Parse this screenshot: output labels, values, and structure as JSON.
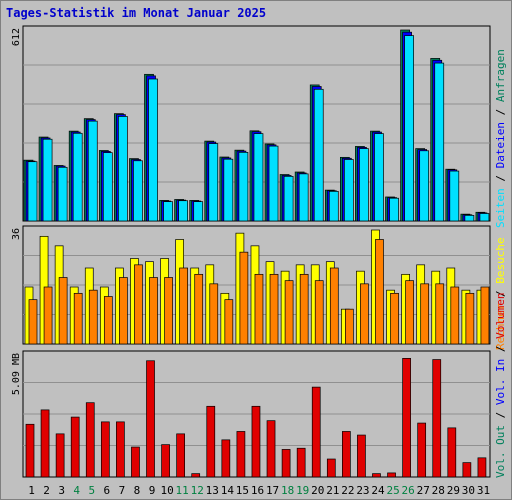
{
  "title": "Tages-Statistik im Monat Januar 2025",
  "colors": {
    "background": "#c0c0c0",
    "title": "#0000cc",
    "anfragen": "#00805c",
    "dateien": "#0000ff",
    "seiten": "#00e0ff",
    "besuche": "#ffff00",
    "rechner": "#ff8000",
    "volumen": "#e00000",
    "weekend": "#008040",
    "day": "#000000"
  },
  "chart_data": [
    {
      "type": "bar",
      "name": "requests-panel",
      "ymax_label": "612",
      "ylim": [
        0,
        612
      ],
      "categories": [
        "1",
        "2",
        "3",
        "4",
        "5",
        "6",
        "7",
        "8",
        "9",
        "10",
        "11",
        "12",
        "13",
        "14",
        "15",
        "16",
        "17",
        "18",
        "19",
        "20",
        "21",
        "22",
        "23",
        "24",
        "25",
        "26",
        "27",
        "28",
        "29",
        "30",
        "31"
      ],
      "weekend_days": [
        "4",
        "5",
        "11",
        "12",
        "18",
        "19",
        "25",
        "26"
      ],
      "series": [
        {
          "name": "Anfragen",
          "values": [
            195,
            269,
            178,
            288,
            328,
            226,
            344,
            200,
            470,
            66,
            69,
            66,
            256,
            205,
            227,
            289,
            247,
            149,
            157,
            436,
            99,
            204,
            239,
            288,
            77,
            612,
            232,
            521,
            166,
            22,
            28
          ]
        },
        {
          "name": "Dateien",
          "values": [
            192,
            266,
            176,
            285,
            325,
            223,
            341,
            197,
            465,
            64,
            67,
            64,
            253,
            202,
            224,
            286,
            244,
            146,
            154,
            431,
            97,
            201,
            236,
            285,
            75,
            605,
            229,
            515,
            164,
            20,
            26
          ]
        },
        {
          "name": "Seiten",
          "values": [
            190,
            262,
            172,
            281,
            320,
            219,
            335,
            193,
            455,
            62,
            65,
            62,
            248,
            198,
            220,
            280,
            240,
            143,
            151,
            422,
            95,
            197,
            232,
            280,
            73,
            594,
            225,
            506,
            160,
            18,
            24
          ]
        }
      ],
      "legend_labels": [
        "Anfragen",
        "Dateien",
        "Seiten"
      ]
    },
    {
      "type": "bar",
      "name": "visits-panel",
      "ymax_label": "36",
      "ylim": [
        0,
        36
      ],
      "categories": [
        "1",
        "2",
        "3",
        "4",
        "5",
        "6",
        "7",
        "8",
        "9",
        "10",
        "11",
        "12",
        "13",
        "14",
        "15",
        "16",
        "17",
        "18",
        "19",
        "20",
        "21",
        "22",
        "23",
        "24",
        "25",
        "26",
        "27",
        "28",
        "29",
        "30",
        "31"
      ],
      "series": [
        {
          "name": "Besuche",
          "values": [
            18,
            34,
            31,
            18,
            24,
            18,
            24,
            27,
            26,
            27,
            33,
            24,
            25,
            16,
            35,
            31,
            26,
            23,
            25,
            25,
            26,
            11,
            23,
            36,
            17,
            22,
            25,
            23,
            24,
            17,
            17
          ]
        },
        {
          "name": "Rechner",
          "values": [
            14,
            18,
            21,
            16,
            17,
            15,
            21,
            25,
            21,
            21,
            24,
            22,
            19,
            14,
            29,
            22,
            22,
            20,
            22,
            20,
            24,
            11,
            19,
            33,
            16,
            20,
            19,
            19,
            18,
            16,
            18
          ]
        }
      ],
      "legend_labels": [
        "Besuche",
        "Rechner"
      ]
    },
    {
      "type": "bar",
      "name": "volume-panel",
      "ymax_label": "5.09 MB",
      "ylim": [
        0,
        5.09
      ],
      "categories": [
        "1",
        "2",
        "3",
        "4",
        "5",
        "6",
        "7",
        "8",
        "9",
        "10",
        "11",
        "12",
        "13",
        "14",
        "15",
        "16",
        "17",
        "18",
        "19",
        "20",
        "21",
        "22",
        "23",
        "24",
        "25",
        "26",
        "27",
        "28",
        "29",
        "30",
        "31"
      ],
      "series": [
        {
          "name": "Volumen",
          "values": [
            2.2,
            2.8,
            1.8,
            2.5,
            3.1,
            2.3,
            2.3,
            1.25,
            4.85,
            1.35,
            1.8,
            0.14,
            2.95,
            1.55,
            1.9,
            2.95,
            2.35,
            1.15,
            1.2,
            3.75,
            0.75,
            1.9,
            1.75,
            0.14,
            0.17,
            4.95,
            2.25,
            4.9,
            2.05,
            0.6,
            0.8
          ]
        }
      ],
      "legend_labels": [
        "Volumen",
        "Vol. In",
        "Vol. Out"
      ]
    }
  ]
}
